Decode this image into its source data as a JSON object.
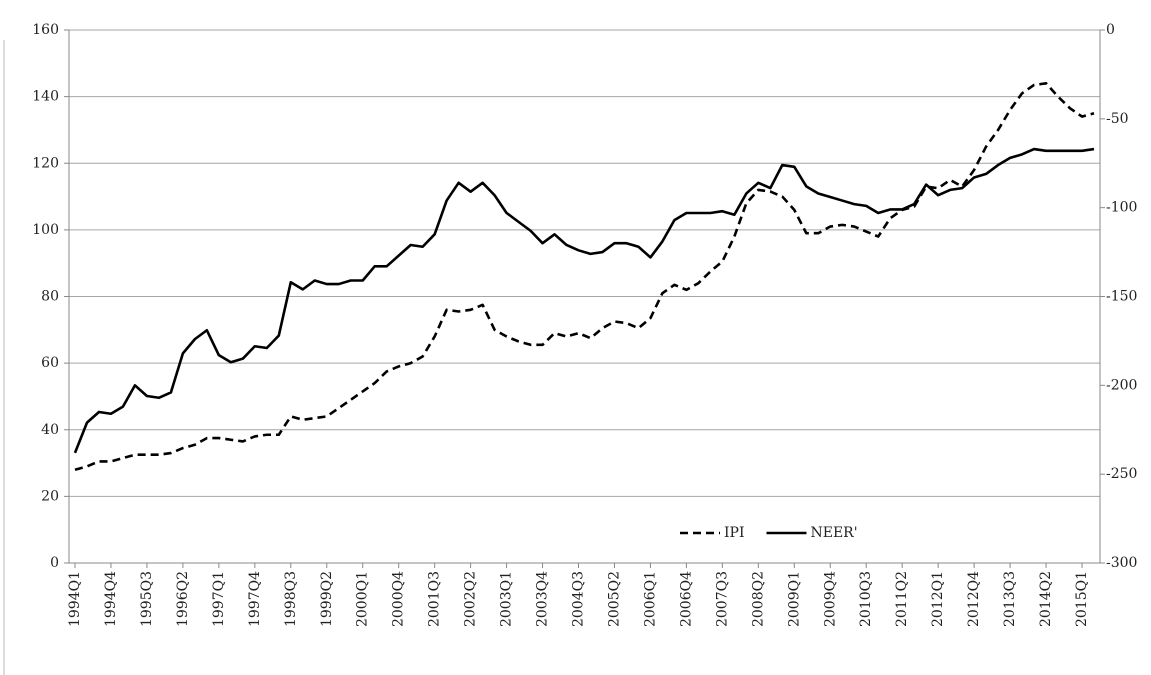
{
  "chart_data": {
    "type": "line",
    "categories": [
      "1994Q1",
      null,
      null,
      "1994Q4",
      null,
      null,
      "1995Q3",
      null,
      null,
      "1996Q2",
      null,
      null,
      "1997Q1",
      null,
      null,
      "1997Q4",
      null,
      null,
      "1998Q3",
      null,
      null,
      "1999Q2",
      null,
      null,
      "2000Q1",
      null,
      null,
      "2000Q4",
      null,
      null,
      "2001Q3",
      null,
      null,
      "2002Q2",
      null,
      null,
      "2003Q1",
      null,
      null,
      "2003Q4",
      null,
      null,
      "2004Q3",
      null,
      null,
      "2005Q2",
      null,
      null,
      "2006Q1",
      null,
      null,
      "2006Q4",
      null,
      null,
      "2007Q3",
      null,
      null,
      "2008Q2",
      null,
      null,
      "2009Q1",
      null,
      null,
      "2009Q4",
      null,
      null,
      "2010Q3",
      null,
      null,
      "2011Q2",
      null,
      null,
      "2012Q1",
      null,
      null,
      "2012Q4",
      null,
      null,
      "2013Q3",
      null,
      null,
      "2014Q2",
      null,
      null,
      "2015Q1",
      null
    ],
    "series": [
      {
        "name": "IPI",
        "color": "#000000",
        "dash": true,
        "values": [
          28,
          29,
          30.5,
          30.5,
          31.5,
          32.5,
          32.5,
          32.5,
          33,
          34.5,
          35.5,
          37.5,
          37.5,
          37,
          36.5,
          38,
          38.5,
          38.5,
          44,
          43,
          43.5,
          44,
          46.5,
          49,
          51.5,
          54,
          57.5,
          59,
          60,
          62,
          68,
          76,
          75.5,
          76,
          77.5,
          70,
          68,
          66.5,
          65.5,
          65.5,
          69,
          68,
          69,
          67.5,
          70.5,
          72.5,
          72,
          70.5,
          73.5,
          81,
          83.5,
          82,
          84,
          87.5,
          90.5,
          98,
          108,
          112,
          111.5,
          110,
          106,
          99,
          99,
          101,
          101.5,
          101,
          99.5,
          98,
          103.5,
          106,
          107,
          113,
          112.5,
          115,
          113,
          118,
          125,
          130,
          136,
          141,
          143.5,
          144,
          140,
          136.5,
          134,
          135
        ]
      },
      {
        "name": "NEER'",
        "color": "#000000",
        "dash": false,
        "axis": "y2",
        "values": [
          -238,
          -221,
          -215,
          -216,
          -212,
          -200,
          -206,
          -207,
          -204,
          -182,
          -174,
          -169,
          -183,
          -187,
          -185,
          -178,
          -179,
          -172,
          -142,
          -146,
          -141,
          -143,
          -143,
          -141,
          -141,
          -133,
          -133,
          -127,
          -121,
          -122,
          -115,
          -96,
          -86,
          -91,
          -86,
          -93,
          -103,
          -108,
          -113,
          -120,
          -115,
          -121,
          -124,
          -126,
          -125,
          -120,
          -120,
          -122,
          -128,
          -119,
          -107,
          -103,
          -103,
          -103,
          -102,
          -104,
          -92,
          -86,
          -89,
          -76,
          -77,
          -88,
          -92,
          -94,
          -96,
          -98,
          -99,
          -103,
          -101,
          -101,
          -98,
          -87,
          -93,
          -90,
          -89,
          -83,
          -81,
          -76,
          -72,
          -70,
          -67,
          -68,
          -68,
          -68,
          -68,
          -67
        ]
      }
    ],
    "ylim": [
      0,
      160
    ],
    "yticks": [
      0,
      20,
      40,
      60,
      80,
      100,
      120,
      140,
      160
    ],
    "y2lim": [
      -300,
      0
    ],
    "y2ticks": [
      -300,
      -250,
      -200,
      -150,
      -100,
      -50,
      0
    ],
    "grid": true,
    "legend": "bottom-right"
  }
}
